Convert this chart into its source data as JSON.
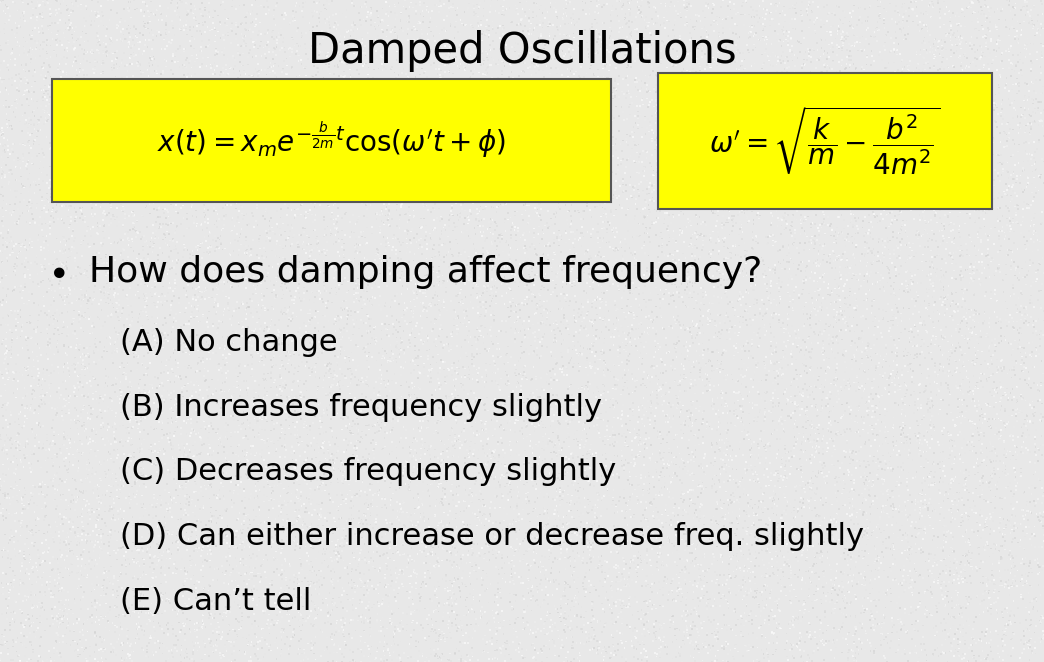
{
  "title": "Damped Oscillations",
  "title_fontsize": 30,
  "title_fontweight": "normal",
  "background_color": "#e8e8e8",
  "box_fill_color": "#ffff00",
  "box_edge_color": "#555555",
  "formula1": "$x(t) = x_{m}e^{-\\frac{b}{2m}t}\\cos(\\omega't + \\phi)$",
  "formula2": "$\\omega' = \\sqrt{\\dfrac{k}{m} - \\dfrac{b^{2}}{4m^{2}}}$",
  "formula_fontsize": 20,
  "bullet_question": "How does damping affect frequency?",
  "bullet_fontsize": 26,
  "options": [
    "(A) No change",
    "(B) Increases frequency slightly",
    "(C) Decreases frequency slightly",
    "(D) Can either increase or decrease freq. slightly",
    "(E) Can’t tell"
  ],
  "option_fontsize": 22,
  "text_color": "#000000",
  "noise_count": 30000,
  "noise_min": 0.82,
  "noise_max": 1.0
}
